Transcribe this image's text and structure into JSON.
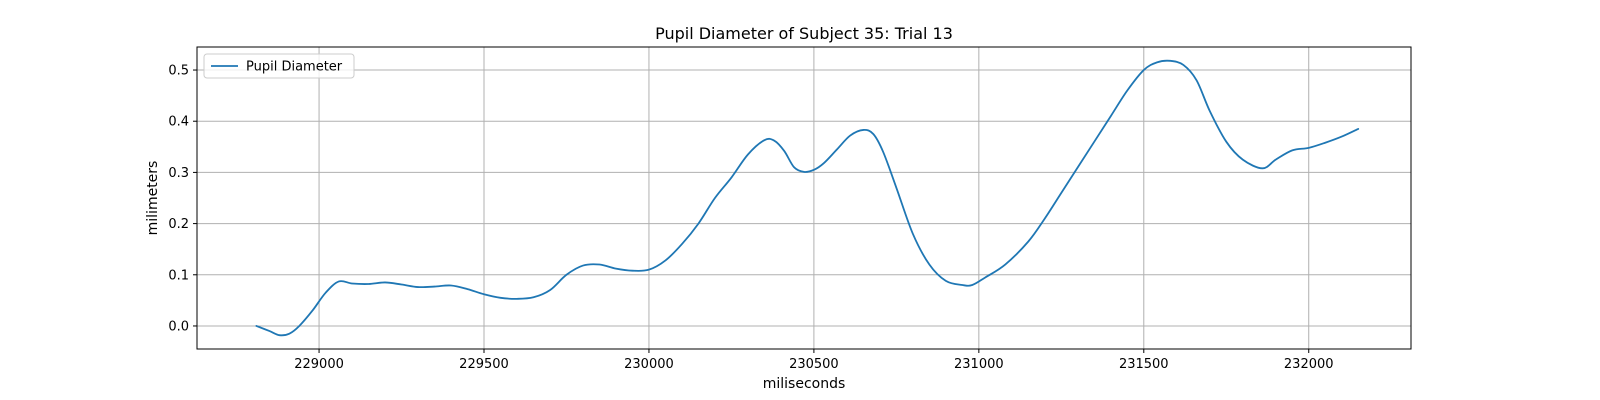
{
  "chart_data": {
    "type": "line",
    "title": "Pupil Diameter of Subject 35: Trial 13",
    "xlabel": "miliseconds",
    "ylabel": "milimeters",
    "xlim": [
      228630,
      232310
    ],
    "ylim": [
      -0.045,
      0.545
    ],
    "xticks": [
      229000,
      229500,
      230000,
      230500,
      231000,
      231500,
      232000
    ],
    "yticks": [
      0.0,
      0.1,
      0.2,
      0.3,
      0.4,
      0.5
    ],
    "ytick_labels": [
      "0.0",
      "0.1",
      "0.2",
      "0.3",
      "0.4",
      "0.5"
    ],
    "grid": true,
    "legend_position": "top-left",
    "series": [
      {
        "name": "Pupil Diameter",
        "color": "#1f77b4",
        "x": [
          228810,
          228850,
          228880,
          228910,
          228940,
          228980,
          229020,
          229060,
          229100,
          229150,
          229200,
          229250,
          229300,
          229350,
          229400,
          229450,
          229500,
          229550,
          229600,
          229650,
          229700,
          229750,
          229800,
          229850,
          229900,
          229950,
          230000,
          230050,
          230100,
          230150,
          230200,
          230250,
          230300,
          230350,
          230380,
          230410,
          230440,
          230470,
          230500,
          230530,
          230570,
          230610,
          230650,
          230680,
          230710,
          230750,
          230800,
          230850,
          230900,
          230950,
          230980,
          231020,
          231080,
          231150,
          231200,
          231250,
          231300,
          231350,
          231400,
          231450,
          231500,
          231540,
          231580,
          231620,
          231660,
          231700,
          231750,
          231800,
          231860,
          231900,
          231950,
          232000,
          232050,
          232100,
          232150
        ],
        "values": [
          0.0,
          -0.01,
          -0.018,
          -0.015,
          0.0,
          0.03,
          0.065,
          0.087,
          0.083,
          0.082,
          0.085,
          0.081,
          0.076,
          0.077,
          0.079,
          0.072,
          0.062,
          0.055,
          0.053,
          0.056,
          0.07,
          0.1,
          0.118,
          0.12,
          0.112,
          0.108,
          0.11,
          0.128,
          0.16,
          0.2,
          0.25,
          0.29,
          0.335,
          0.363,
          0.362,
          0.342,
          0.31,
          0.301,
          0.305,
          0.318,
          0.345,
          0.372,
          0.383,
          0.375,
          0.34,
          0.27,
          0.18,
          0.12,
          0.088,
          0.08,
          0.08,
          0.095,
          0.12,
          0.165,
          0.21,
          0.26,
          0.31,
          0.36,
          0.41,
          0.46,
          0.5,
          0.515,
          0.518,
          0.51,
          0.48,
          0.42,
          0.36,
          0.325,
          0.308,
          0.325,
          0.343,
          0.348,
          0.358,
          0.37,
          0.385
        ]
      }
    ]
  }
}
